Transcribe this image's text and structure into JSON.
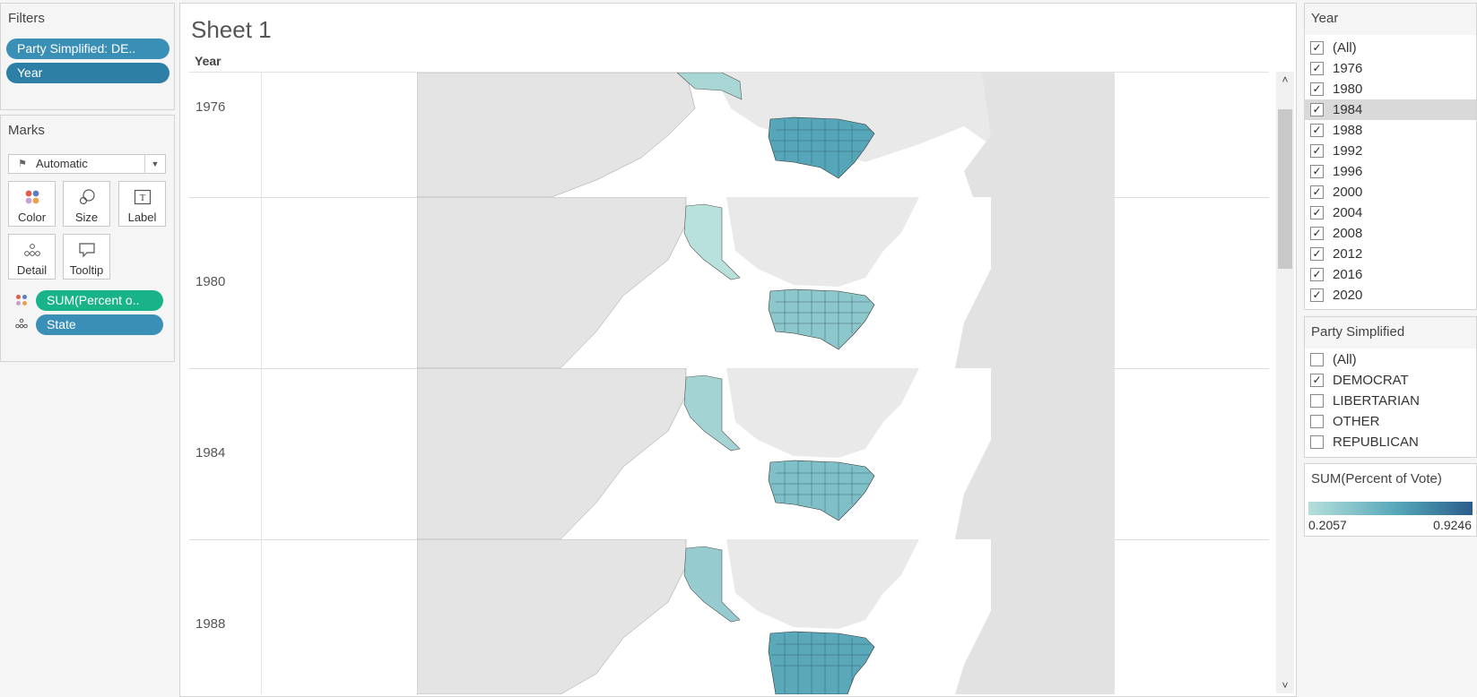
{
  "filters": {
    "title": "Filters",
    "pills": [
      "Party Simplified: DE..",
      "Year"
    ]
  },
  "marks": {
    "title": "Marks",
    "mark_type": "Automatic",
    "buttons": [
      "Color",
      "Size",
      "Label",
      "Detail",
      "Tooltip"
    ],
    "fields": [
      "SUM(Percent o..",
      "State"
    ]
  },
  "sheet": {
    "title": "Sheet 1",
    "column_header": "Year",
    "rows": [
      "1976",
      "1980",
      "1984",
      "1988"
    ]
  },
  "year_filter": {
    "title": "Year",
    "items": [
      {
        "label": "(All)",
        "checked": true
      },
      {
        "label": "1976",
        "checked": true
      },
      {
        "label": "1980",
        "checked": true
      },
      {
        "label": "1984",
        "checked": true
      },
      {
        "label": "1988",
        "checked": true
      },
      {
        "label": "1992",
        "checked": true
      },
      {
        "label": "1996",
        "checked": true
      },
      {
        "label": "2000",
        "checked": true
      },
      {
        "label": "2004",
        "checked": true
      },
      {
        "label": "2008",
        "checked": true
      },
      {
        "label": "2012",
        "checked": true
      },
      {
        "label": "2016",
        "checked": true
      },
      {
        "label": "2020",
        "checked": true
      }
    ],
    "highlighted": "1984"
  },
  "party_filter": {
    "title": "Party Simplified",
    "items": [
      {
        "label": "(All)",
        "checked": false
      },
      {
        "label": "DEMOCRAT",
        "checked": true
      },
      {
        "label": "LIBERTARIAN",
        "checked": false
      },
      {
        "label": "OTHER",
        "checked": false
      },
      {
        "label": "REPUBLICAN",
        "checked": false
      }
    ]
  },
  "legend": {
    "title": "SUM(Percent of Vote)",
    "min": "0.2057",
    "max": "0.9246",
    "colors": [
      "#b5dfdc",
      "#55a6b8",
      "#2a5d8b"
    ]
  },
  "colors": {
    "pill_blue": "#3a8fb7",
    "pill_green": "#19b38a",
    "land": "#e4e4e4",
    "alaska": [
      "#a8d6d4",
      "#b8e0dd",
      "#a3d3d2",
      "#96ccd0"
    ],
    "states_dark": "#4f9db3",
    "states_light": "#9fd1d0"
  }
}
